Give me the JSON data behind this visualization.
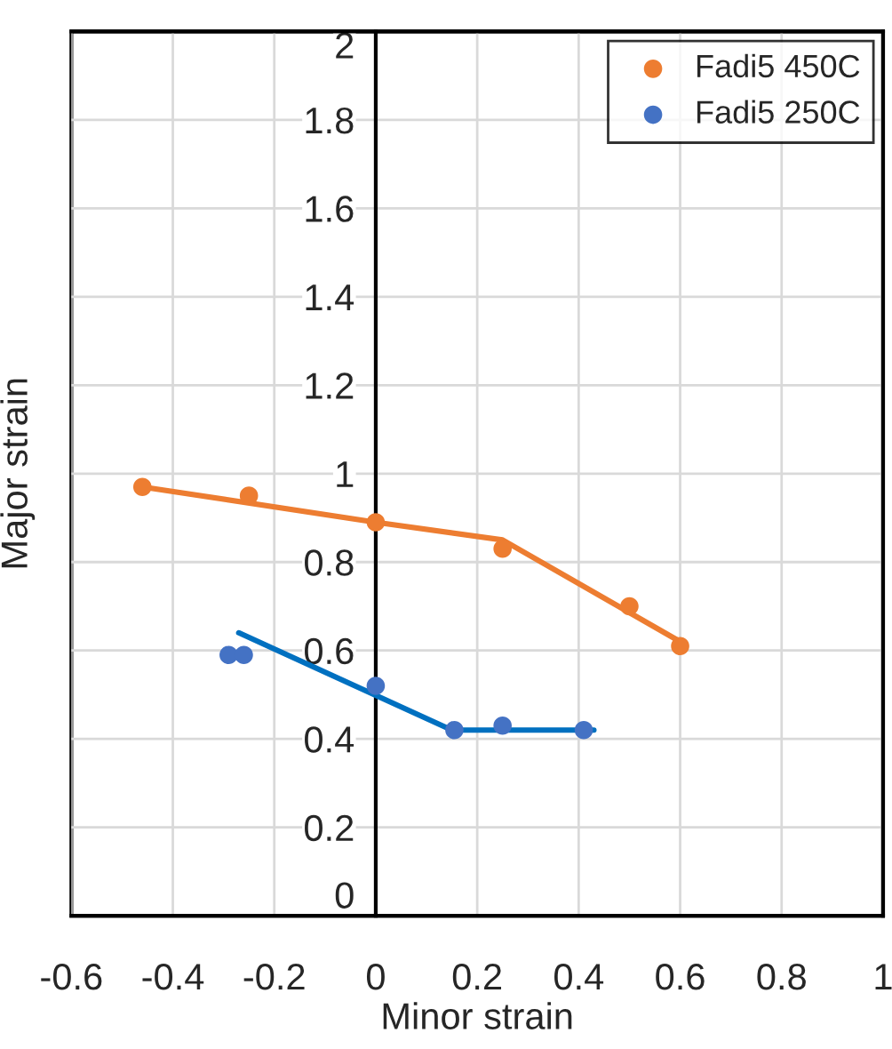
{
  "chart_data": {
    "type": "scatter",
    "xlabel": "Minor strain",
    "ylabel": "Major strain",
    "xlim": [
      -0.6,
      1
    ],
    "xticks": [
      -0.6,
      -0.4,
      -0.2,
      0,
      0.2,
      0.4,
      0.6,
      0.8,
      1
    ],
    "ylim": [
      0,
      2
    ],
    "yticks": [
      0,
      0.2,
      0.4,
      0.6,
      0.8,
      1,
      1.2,
      1.4,
      1.6,
      1.8,
      2
    ],
    "grid": true,
    "legend": "top right",
    "series": [
      {
        "name": "Fadi5 450C",
        "marker": "circle",
        "color": "#ed7d31",
        "x": [
          -0.46,
          -0.25,
          0,
          0.25,
          0.5,
          0.6
        ],
        "values": [
          0.97,
          0.95,
          0.89,
          0.83,
          0.7,
          0.61
        ]
      },
      {
        "name": "Fadi5 250C",
        "marker": "circle",
        "color": "#4472c4",
        "x": [
          -0.29,
          -0.26,
          0,
          0.155,
          0.25,
          0.41
        ],
        "values": [
          0.59,
          0.59,
          0.52,
          0.42,
          0.43,
          0.42
        ]
      },
      {
        "type": "line",
        "marker": "none",
        "color": "#ed7d31",
        "x": [
          -0.46,
          0,
          0.25,
          0.6
        ],
        "values": [
          0.97,
          0.89,
          0.85,
          0.62
        ]
      },
      {
        "type": "line",
        "marker": "none",
        "color": "#0070c0",
        "x": [
          -0.27,
          0.15,
          0.43
        ],
        "values": [
          0.64,
          0.42,
          0.42
        ]
      }
    ]
  }
}
